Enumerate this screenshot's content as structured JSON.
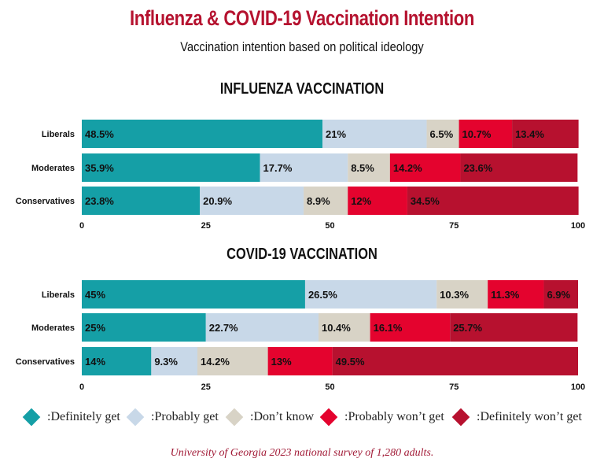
{
  "title": "Influenza & COVID-19 Vaccination Intention",
  "subtitle": "Vaccination intention based on political ideology",
  "colors": {
    "definitely_get": "#159fa6",
    "probably_get": "#c8d8e8",
    "dont_know": "#d8d3c6",
    "probably_wont_get": "#e4032e",
    "definitely_wont_get": "#b7112f"
  },
  "legend": [
    {
      "key": "definitely_get",
      "label": ":Definitely get",
      "color": "#159fa6"
    },
    {
      "key": "probably_get",
      "label": ":Probably get",
      "color": "#c8d8e8"
    },
    {
      "key": "dont_know",
      "label": ":Don’t know",
      "color": "#d8d3c6"
    },
    {
      "key": "probably_wont_get",
      "label": ":Probably won’t get",
      "color": "#e4032e"
    },
    {
      "key": "definitely_wont_get",
      "label": ":Definitely won’t get",
      "color": "#b7112f"
    }
  ],
  "chart_data": [
    {
      "type": "bar",
      "orientation": "horizontal-stacked",
      "title": "INFLUENZA VACCINATION",
      "categories": [
        "Liberals",
        "Moderates",
        "Conservatives"
      ],
      "xlim": [
        0,
        100
      ],
      "xticks": [
        "0",
        "25",
        "50",
        "75",
        "100"
      ],
      "series": [
        {
          "name": ":Definitely get",
          "values": [
            48.5,
            35.9,
            23.8
          ],
          "labels": [
            "48.5%",
            "35.9%",
            "23.8%"
          ]
        },
        {
          "name": ":Probably get",
          "values": [
            21,
            17.7,
            20.9
          ],
          "labels": [
            "21%",
            "17.7%",
            "20.9%"
          ]
        },
        {
          "name": ":Don’t know",
          "values": [
            6.5,
            8.5,
            8.9
          ],
          "labels": [
            "6.5%",
            "8.5%",
            "8.9%"
          ]
        },
        {
          "name": ":Probably won’t get",
          "values": [
            10.7,
            14.2,
            12
          ],
          "labels": [
            "10.7%",
            "14.2%",
            "12%"
          ]
        },
        {
          "name": ":Definitely won’t get",
          "values": [
            13.4,
            23.6,
            34.5
          ],
          "labels": [
            "13.4%",
            "23.6%",
            "34.5%"
          ]
        }
      ]
    },
    {
      "type": "bar",
      "orientation": "horizontal-stacked",
      "title": "COVID-19 VACCINATION",
      "categories": [
        "Liberals",
        "Moderates",
        "Conservatives"
      ],
      "xlim": [
        0,
        100
      ],
      "xticks": [
        "0",
        "25",
        "50",
        "75",
        "100"
      ],
      "series": [
        {
          "name": ":Definitely get",
          "values": [
            45,
            25,
            14
          ],
          "labels": [
            "45%",
            "25%",
            "14%"
          ]
        },
        {
          "name": ":Probably get",
          "values": [
            26.5,
            22.7,
            9.3
          ],
          "labels": [
            "26.5%",
            "22.7%",
            "9.3%"
          ]
        },
        {
          "name": ":Don’t know",
          "values": [
            10.3,
            10.4,
            14.2
          ],
          "labels": [
            "10.3%",
            "10.4%",
            "14.2%"
          ]
        },
        {
          "name": ":Probably won’t get",
          "values": [
            11.3,
            16.1,
            13
          ],
          "labels": [
            "11.3%",
            "16.1%",
            "13%"
          ]
        },
        {
          "name": ":Definitely won’t get",
          "values": [
            6.9,
            25.7,
            49.5
          ],
          "labels": [
            "6.9%",
            "25.7%",
            "49.5%"
          ]
        }
      ]
    }
  ],
  "source": "University of Georgia 2023 national survey of 1,280 adults."
}
